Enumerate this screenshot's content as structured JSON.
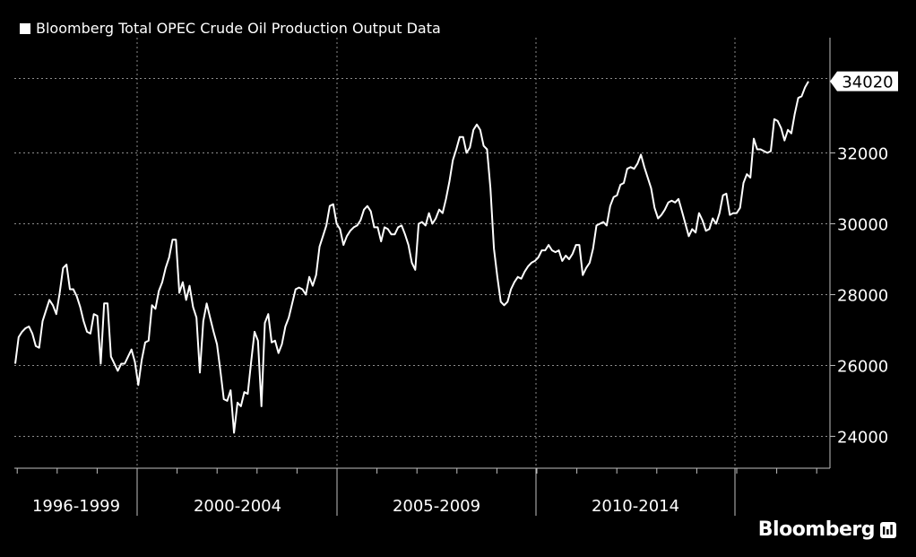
{
  "chart_data": {
    "type": "line",
    "title": "Bloomberg Total OPEC Crude Oil Production Output Data",
    "period_labels": [
      "1996-1999",
      "2000-2004",
      "2005-2009",
      "2010-2014"
    ],
    "y_ticks": [
      24000,
      26000,
      28000,
      30000,
      32000
    ],
    "ylim": [
      23100,
      35100
    ],
    "last_value_label": "34020",
    "grid": true,
    "colors": {
      "background": "#000000",
      "line": "#ffffff",
      "grid": "#8c8c8c"
    },
    "series": [
      {
        "values": [
          26050,
          26800,
          26950,
          27050,
          27100,
          26900,
          26550,
          26500,
          27250,
          27550,
          27850,
          27700,
          27450,
          28050,
          28750,
          28850,
          28150,
          28150,
          27950,
          27650,
          27250,
          26950,
          26900,
          27450,
          27400,
          26050,
          27750,
          27750,
          26250,
          26050,
          25850,
          26050,
          26050,
          26250,
          26450,
          26100,
          25450,
          26150,
          26650,
          26700,
          27700,
          27600,
          28100,
          28350,
          28750,
          29050,
          29550,
          29550,
          28050,
          28350,
          27850,
          28250,
          27650,
          27350,
          25800,
          27250,
          27750,
          27350,
          26950,
          26600,
          25850,
          25050,
          25000,
          25300,
          24100,
          24950,
          24850,
          25250,
          25200,
          26100,
          26950,
          26700,
          24850,
          27200,
          27450,
          26650,
          26700,
          26350,
          26600,
          27100,
          27350,
          27750,
          28150,
          28200,
          28150,
          28000,
          28500,
          28250,
          28550,
          29350,
          29650,
          29950,
          30500,
          30550,
          30000,
          29850,
          29400,
          29650,
          29800,
          29900,
          29950,
          30100,
          30400,
          30500,
          30350,
          29900,
          29900,
          29500,
          29900,
          29850,
          29700,
          29700,
          29900,
          29950,
          29700,
          29400,
          28900,
          28700,
          30000,
          30050,
          29950,
          30300,
          30000,
          30150,
          30400,
          30300,
          30700,
          31200,
          31800,
          32100,
          32450,
          32450,
          32000,
          32150,
          32650,
          32800,
          32650,
          32200,
          32100,
          31000,
          29300,
          28500,
          27800,
          27700,
          27800,
          28150,
          28350,
          28500,
          28450,
          28650,
          28800,
          28900,
          28950,
          29050,
          29250,
          29250,
          29400,
          29250,
          29200,
          29250,
          28950,
          29100,
          29000,
          29150,
          29400,
          29400,
          28550,
          28750,
          28900,
          29300,
          29950,
          30000,
          30050,
          29950,
          30500,
          30750,
          30800,
          31100,
          31150,
          31550,
          31600,
          31550,
          31700,
          31950,
          31600,
          31300,
          31000,
          30450,
          30150,
          30250,
          30400,
          30600,
          30650,
          30600,
          30700,
          30350,
          30000,
          29650,
          29850,
          29750,
          30300,
          30100,
          29800,
          29850,
          30150,
          30000,
          30300,
          30800,
          30850,
          30250,
          30300,
          30300,
          30450,
          31150,
          31400,
          31300,
          32400,
          32100,
          32100,
          32050,
          32000,
          32050,
          32950,
          32900,
          32700,
          32350,
          32650,
          32550,
          33100,
          33550,
          33600,
          33850,
          34020
        ]
      }
    ]
  },
  "footer": {
    "brand": "Bloomberg"
  }
}
